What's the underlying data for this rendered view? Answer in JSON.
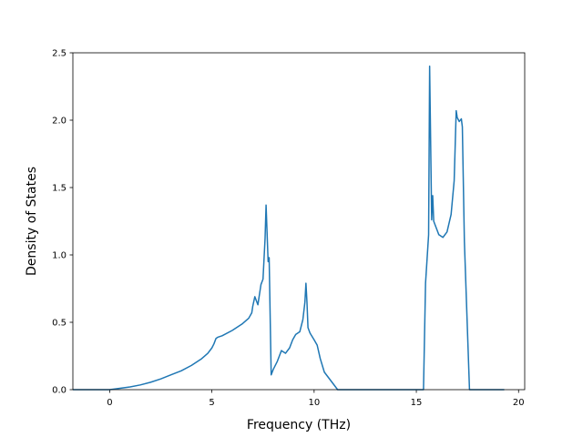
{
  "chart_data": {
    "type": "line",
    "title": "",
    "xlabel": "Frequency (THz)",
    "ylabel": "Density of States",
    "xlim": [
      -1.8,
      20.3
    ],
    "ylim": [
      0,
      2.5
    ],
    "xticks": [
      0,
      5,
      10,
      15,
      20
    ],
    "xtick_labels": [
      "0",
      "5",
      "10",
      "15",
      "20"
    ],
    "yticks": [
      0,
      0.5,
      1.0,
      1.5,
      2.0,
      2.5
    ],
    "ytick_labels": [
      "0.0",
      "0.5",
      "1.0",
      "1.5",
      "2.0",
      "2.5"
    ],
    "grid": false,
    "legend": "none",
    "series": [
      {
        "color": "#1f77b4",
        "x": [
          -1.8,
          0.0,
          0.5,
          1.0,
          1.5,
          2.0,
          2.5,
          3.0,
          3.5,
          4.0,
          4.5,
          4.8,
          5.0,
          5.1,
          5.2,
          5.3,
          5.5,
          6.0,
          6.5,
          6.8,
          6.95,
          7.0,
          7.1,
          7.25,
          7.4,
          7.5,
          7.6,
          7.65,
          7.75,
          7.8,
          7.9,
          8.0,
          8.2,
          8.4,
          8.6,
          8.8,
          8.95,
          9.1,
          9.3,
          9.45,
          9.55,
          9.6,
          9.65,
          9.7,
          9.8,
          10.0,
          10.15,
          10.3,
          10.5,
          10.8,
          11.15,
          12.0,
          15.35,
          15.45,
          15.6,
          15.65,
          15.75,
          15.8,
          15.85,
          15.9,
          16.1,
          16.3,
          16.5,
          16.7,
          16.85,
          16.95,
          17.0,
          17.1,
          17.2,
          17.25,
          17.35,
          17.6,
          19.3
        ],
        "y": [
          0.0,
          0.0,
          0.01,
          0.02,
          0.035,
          0.055,
          0.08,
          0.11,
          0.14,
          0.18,
          0.23,
          0.27,
          0.31,
          0.34,
          0.38,
          0.39,
          0.4,
          0.44,
          0.49,
          0.53,
          0.57,
          0.62,
          0.69,
          0.63,
          0.78,
          0.82,
          1.12,
          1.37,
          0.95,
          0.98,
          0.11,
          0.15,
          0.21,
          0.29,
          0.27,
          0.31,
          0.37,
          0.41,
          0.43,
          0.52,
          0.65,
          0.79,
          0.65,
          0.46,
          0.42,
          0.37,
          0.33,
          0.23,
          0.13,
          0.07,
          0.0,
          0.0,
          0.0,
          0.79,
          1.15,
          2.4,
          1.26,
          1.44,
          1.25,
          1.23,
          1.15,
          1.13,
          1.17,
          1.3,
          1.55,
          2.07,
          2.02,
          1.99,
          2.01,
          1.95,
          1.1,
          0.0,
          0.0
        ]
      }
    ]
  }
}
